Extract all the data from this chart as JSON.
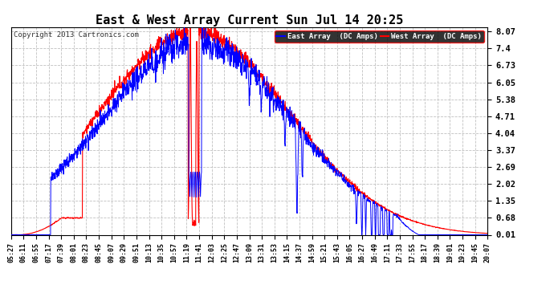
{
  "title": "East & West Array Current Sun Jul 14 20:25",
  "copyright": "Copyright 2013 Cartronics.com",
  "legend_east": "East Array  (DC Amps)",
  "legend_west": "West Array  (DC Amps)",
  "east_color": "#0000ff",
  "west_color": "#ff0000",
  "background_color": "#ffffff",
  "grid_color": "#c0c0c0",
  "yticks": [
    0.01,
    0.68,
    1.35,
    2.02,
    2.69,
    3.37,
    4.04,
    4.71,
    5.38,
    6.05,
    6.73,
    7.4,
    8.07
  ],
  "xtick_labels": [
    "05:27",
    "06:11",
    "06:55",
    "07:17",
    "07:39",
    "08:01",
    "08:23",
    "08:45",
    "09:07",
    "09:29",
    "09:51",
    "10:13",
    "10:35",
    "10:57",
    "11:19",
    "11:41",
    "12:03",
    "12:25",
    "12:47",
    "13:09",
    "13:31",
    "13:53",
    "14:15",
    "14:37",
    "14:59",
    "15:21",
    "15:43",
    "16:05",
    "16:27",
    "16:49",
    "17:11",
    "17:33",
    "17:55",
    "18:17",
    "18:39",
    "19:01",
    "19:23",
    "19:45",
    "20:07"
  ],
  "ymin": 0.01,
  "ymax": 8.07
}
